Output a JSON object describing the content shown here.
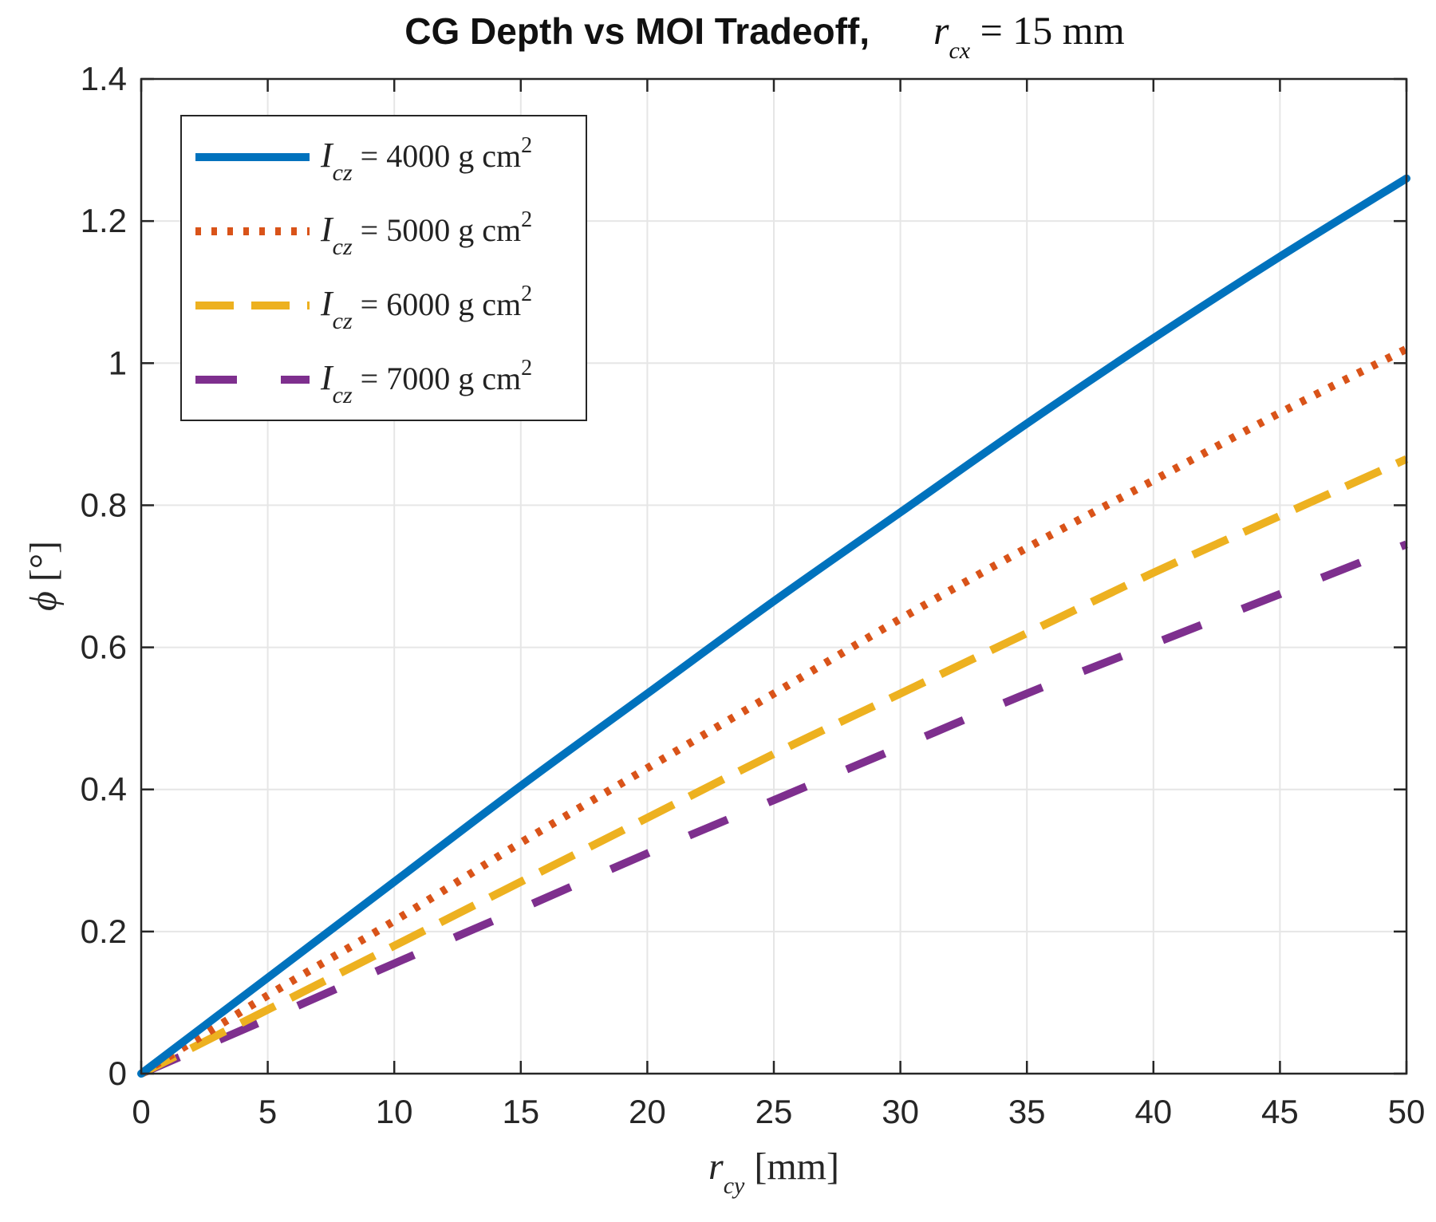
{
  "chart_data": {
    "type": "line",
    "title": "CG Depth vs MOI Tradeoff,",
    "title_math": {
      "var": "r",
      "sub": "cx",
      "rest": " = 15 mm"
    },
    "xlabel": {
      "var": "r",
      "sub": "cy",
      "unit": " [mm]"
    },
    "ylabel": {
      "var": "ϕ",
      "unit": " [°]"
    },
    "xlim": [
      0,
      50
    ],
    "ylim": [
      0,
      1.4
    ],
    "xticks": [
      0,
      5,
      10,
      15,
      20,
      25,
      30,
      35,
      40,
      45,
      50
    ],
    "yticks": [
      0,
      0.2,
      0.4,
      0.6,
      0.8,
      1,
      1.2,
      1.4
    ],
    "xtick_labels": [
      "0",
      "5",
      "10",
      "15",
      "20",
      "25",
      "30",
      "35",
      "40",
      "45",
      "50"
    ],
    "ytick_labels": [
      "0",
      "0.2",
      "0.4",
      "0.6",
      "0.8",
      "1",
      "1.2",
      "1.4"
    ],
    "grid": true,
    "legend_position": "top-left",
    "x": [
      0,
      5,
      10,
      15,
      20,
      25,
      30,
      35,
      40,
      45,
      50
    ],
    "series": [
      {
        "name": "Icz = 4000 g cm2",
        "label_var": "I",
        "label_sub": "cz",
        "label_value": " = 4000 g cm",
        "label_sup": "2",
        "color": "#0072BD",
        "style": "solid",
        "values": [
          0,
          0.135,
          0.27,
          0.405,
          0.535,
          0.665,
          0.79,
          0.915,
          1.035,
          1.15,
          1.26
        ]
      },
      {
        "name": "Icz = 5000 g cm2",
        "label_var": "I",
        "label_sub": "cz",
        "label_value": " = 5000 g cm",
        "label_sup": "2",
        "color": "#D95319",
        "style": "dotted",
        "values": [
          0,
          0.11,
          0.215,
          0.325,
          0.43,
          0.535,
          0.64,
          0.74,
          0.835,
          0.93,
          1.02
        ]
      },
      {
        "name": "Icz = 6000 g cm2",
        "label_var": "I",
        "label_sub": "cz",
        "label_value": " = 6000 g cm",
        "label_sup": "2",
        "color": "#EDB120",
        "style": "dashed",
        "values": [
          0,
          0.09,
          0.18,
          0.27,
          0.36,
          0.45,
          0.535,
          0.62,
          0.705,
          0.785,
          0.865
        ]
      },
      {
        "name": "Icz = 7000 g cm2",
        "label_var": "I",
        "label_sub": "cz",
        "label_value": " = 7000 g cm",
        "label_sup": "2",
        "color": "#7E2F8E",
        "style": "longdash",
        "values": [
          0,
          0.077,
          0.155,
          0.232,
          0.31,
          0.385,
          0.46,
          0.535,
          0.605,
          0.675,
          0.745
        ]
      }
    ]
  }
}
